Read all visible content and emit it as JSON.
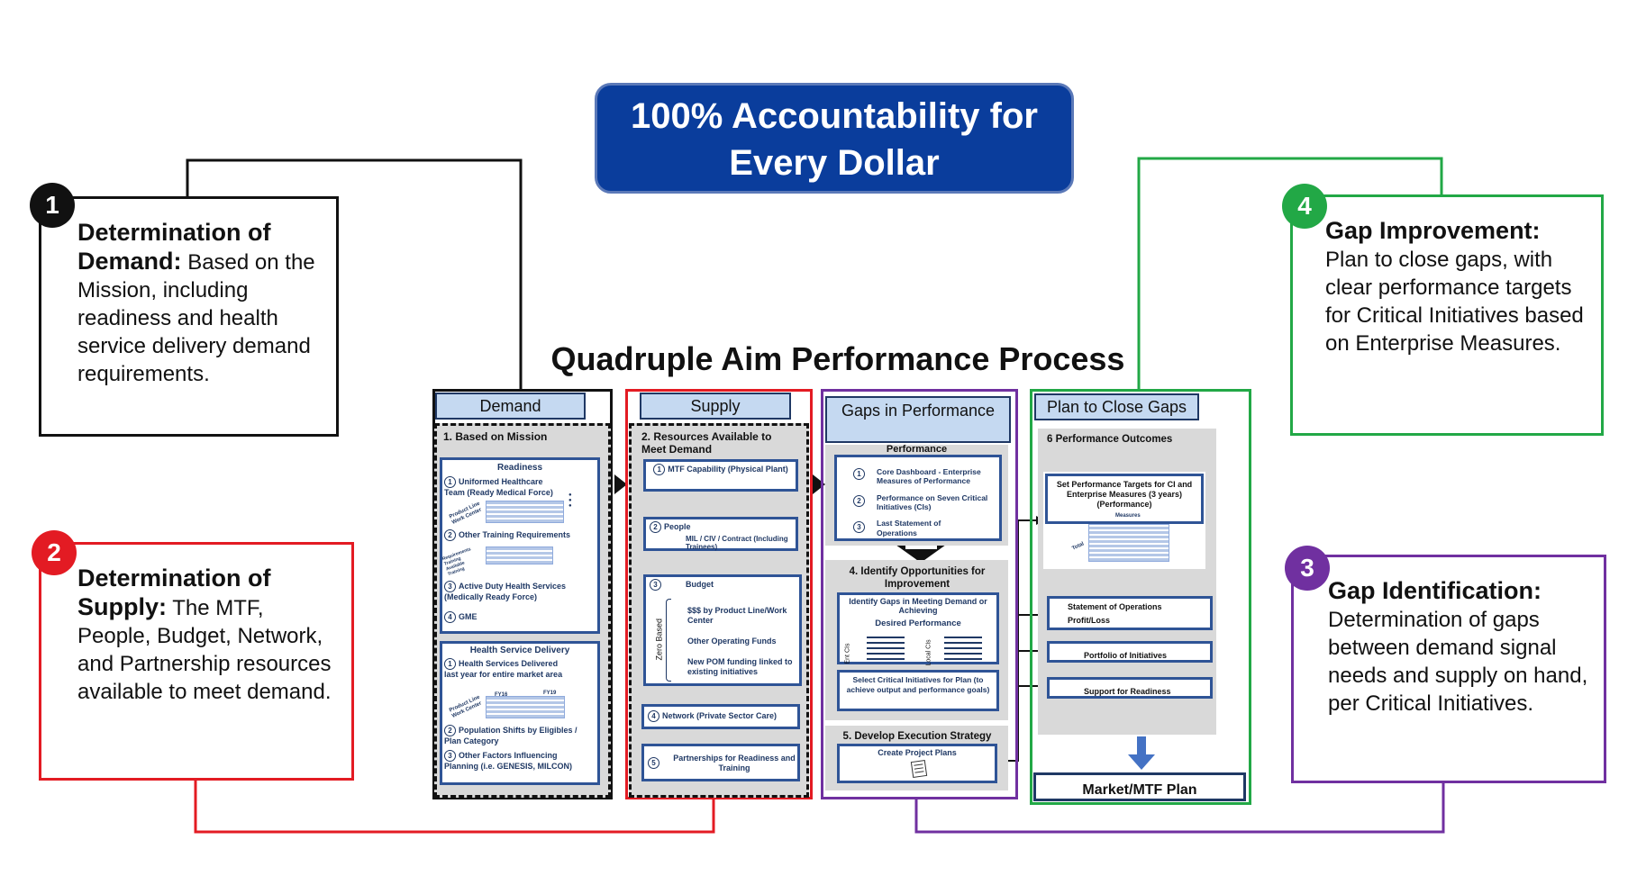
{
  "banner": {
    "line1": "100% Accountability for",
    "line2": "Every Dollar"
  },
  "process_title": "Quadruple Aim Performance Process",
  "callouts": [
    {
      "num": "1",
      "bold1": "Determination of",
      "bold2": "Demand:",
      "text": "Based on the Mission, including readiness and health service delivery demand requirements.",
      "color": "#111111"
    },
    {
      "num": "2",
      "bold1": "Determination of",
      "bold2": "Supply:",
      "text": "The MTF, People, Budget, Network, and Partnership resources available to meet demand.",
      "color": "#e31b23"
    },
    {
      "num": "3",
      "bold1": "Gap Identification:",
      "text": "Determination of gaps between demand signal needs and supply on hand, per Critical Initiatives.",
      "color": "#7030a0"
    },
    {
      "num": "4",
      "bold1": "Gap Improvement:",
      "text": "Plan to close gaps, with clear performance targets for Critical Initiatives based on Enterprise Measures.",
      "color": "#22a846"
    }
  ],
  "demand": {
    "header": "Demand",
    "section": "1. Based on  Mission",
    "readiness_title": "Readiness",
    "r1": "Uniformed Healthcare Team (Ready Medical Force)",
    "r1_rowlabel": "Product Line Work Center",
    "r1_dots": "●\n●\n●",
    "r2": "Other Training Requirements",
    "r2_rowlabel": "Requirements Training Available Training",
    "r3": "Active Duty Health Services (Medically Ready Force)",
    "r4": "GME",
    "hsd_title": "Health Service Delivery",
    "h1": "Health Services Delivered last year for entire market area",
    "h1_fy": "FY16",
    "h1_fy2": "FY19",
    "h1_rowlabel": "Product Line Work Center",
    "h2": "Population Shifts by Eligibles / Plan Category",
    "h3": "Other Factors Influencing Planning (i.e. GENESIS, MILCON)"
  },
  "supply": {
    "header": "Supply",
    "section": "2. Resources  Available to Meet Demand",
    "s1": "MTF Capability (Physical Plant)",
    "s2_title": "People",
    "s2_text": "MIL / CIV / Contract (Including Trainees)",
    "s3_title": "Budget",
    "s3_side": "Zero Based",
    "s3_a": "$$$ by Product  Line/Work Center",
    "s3_b": "Other Operating Funds",
    "s3_c": "New POM funding  linked to existing  initiatives",
    "s4": "Network  (Private Sector Care)",
    "s5": "Partnerships for Readiness and Training"
  },
  "gaps": {
    "header": "Gaps in Performance",
    "section": "Performance",
    "g1": "Core Dashboard - Enterprise Measures of Performance",
    "g2": "Performance on Seven Critical Initiatives (CIs)",
    "g3": "Last Statement of Operations",
    "sec4": "4. Identify Opportunities for Improvement",
    "identify": "Identify Gaps in Meeting Demand or Achieving",
    "desired": "Desired Performance",
    "ent_label": "Ent CIs",
    "loc_label": "Local CIs",
    "select": "Select Critical Initiatives for  Plan (to achieve output and performance goals)",
    "sec5": "5. Develop Execution Strategy",
    "create": "Create Project Plans"
  },
  "plan": {
    "header": "Plan to Close Gaps",
    "section": "6 Performance Outcomes",
    "targets": "Set Performance Targets for  CI and Enterprise Measures  (3 years) (Performance)",
    "measures": "Measures",
    "total": "Total",
    "p1": "Statement of Operations",
    "p1b": "Profit/Loss",
    "p2": "Portfolio of Initiatives",
    "p3": "Support for Readiness",
    "market": "Market/MTF Plan"
  },
  "colors": {
    "banner": "#0a3d9c",
    "demand": "#111111",
    "supply": "#e31b23",
    "gaps": "#7030a0",
    "plan": "#22a846"
  }
}
